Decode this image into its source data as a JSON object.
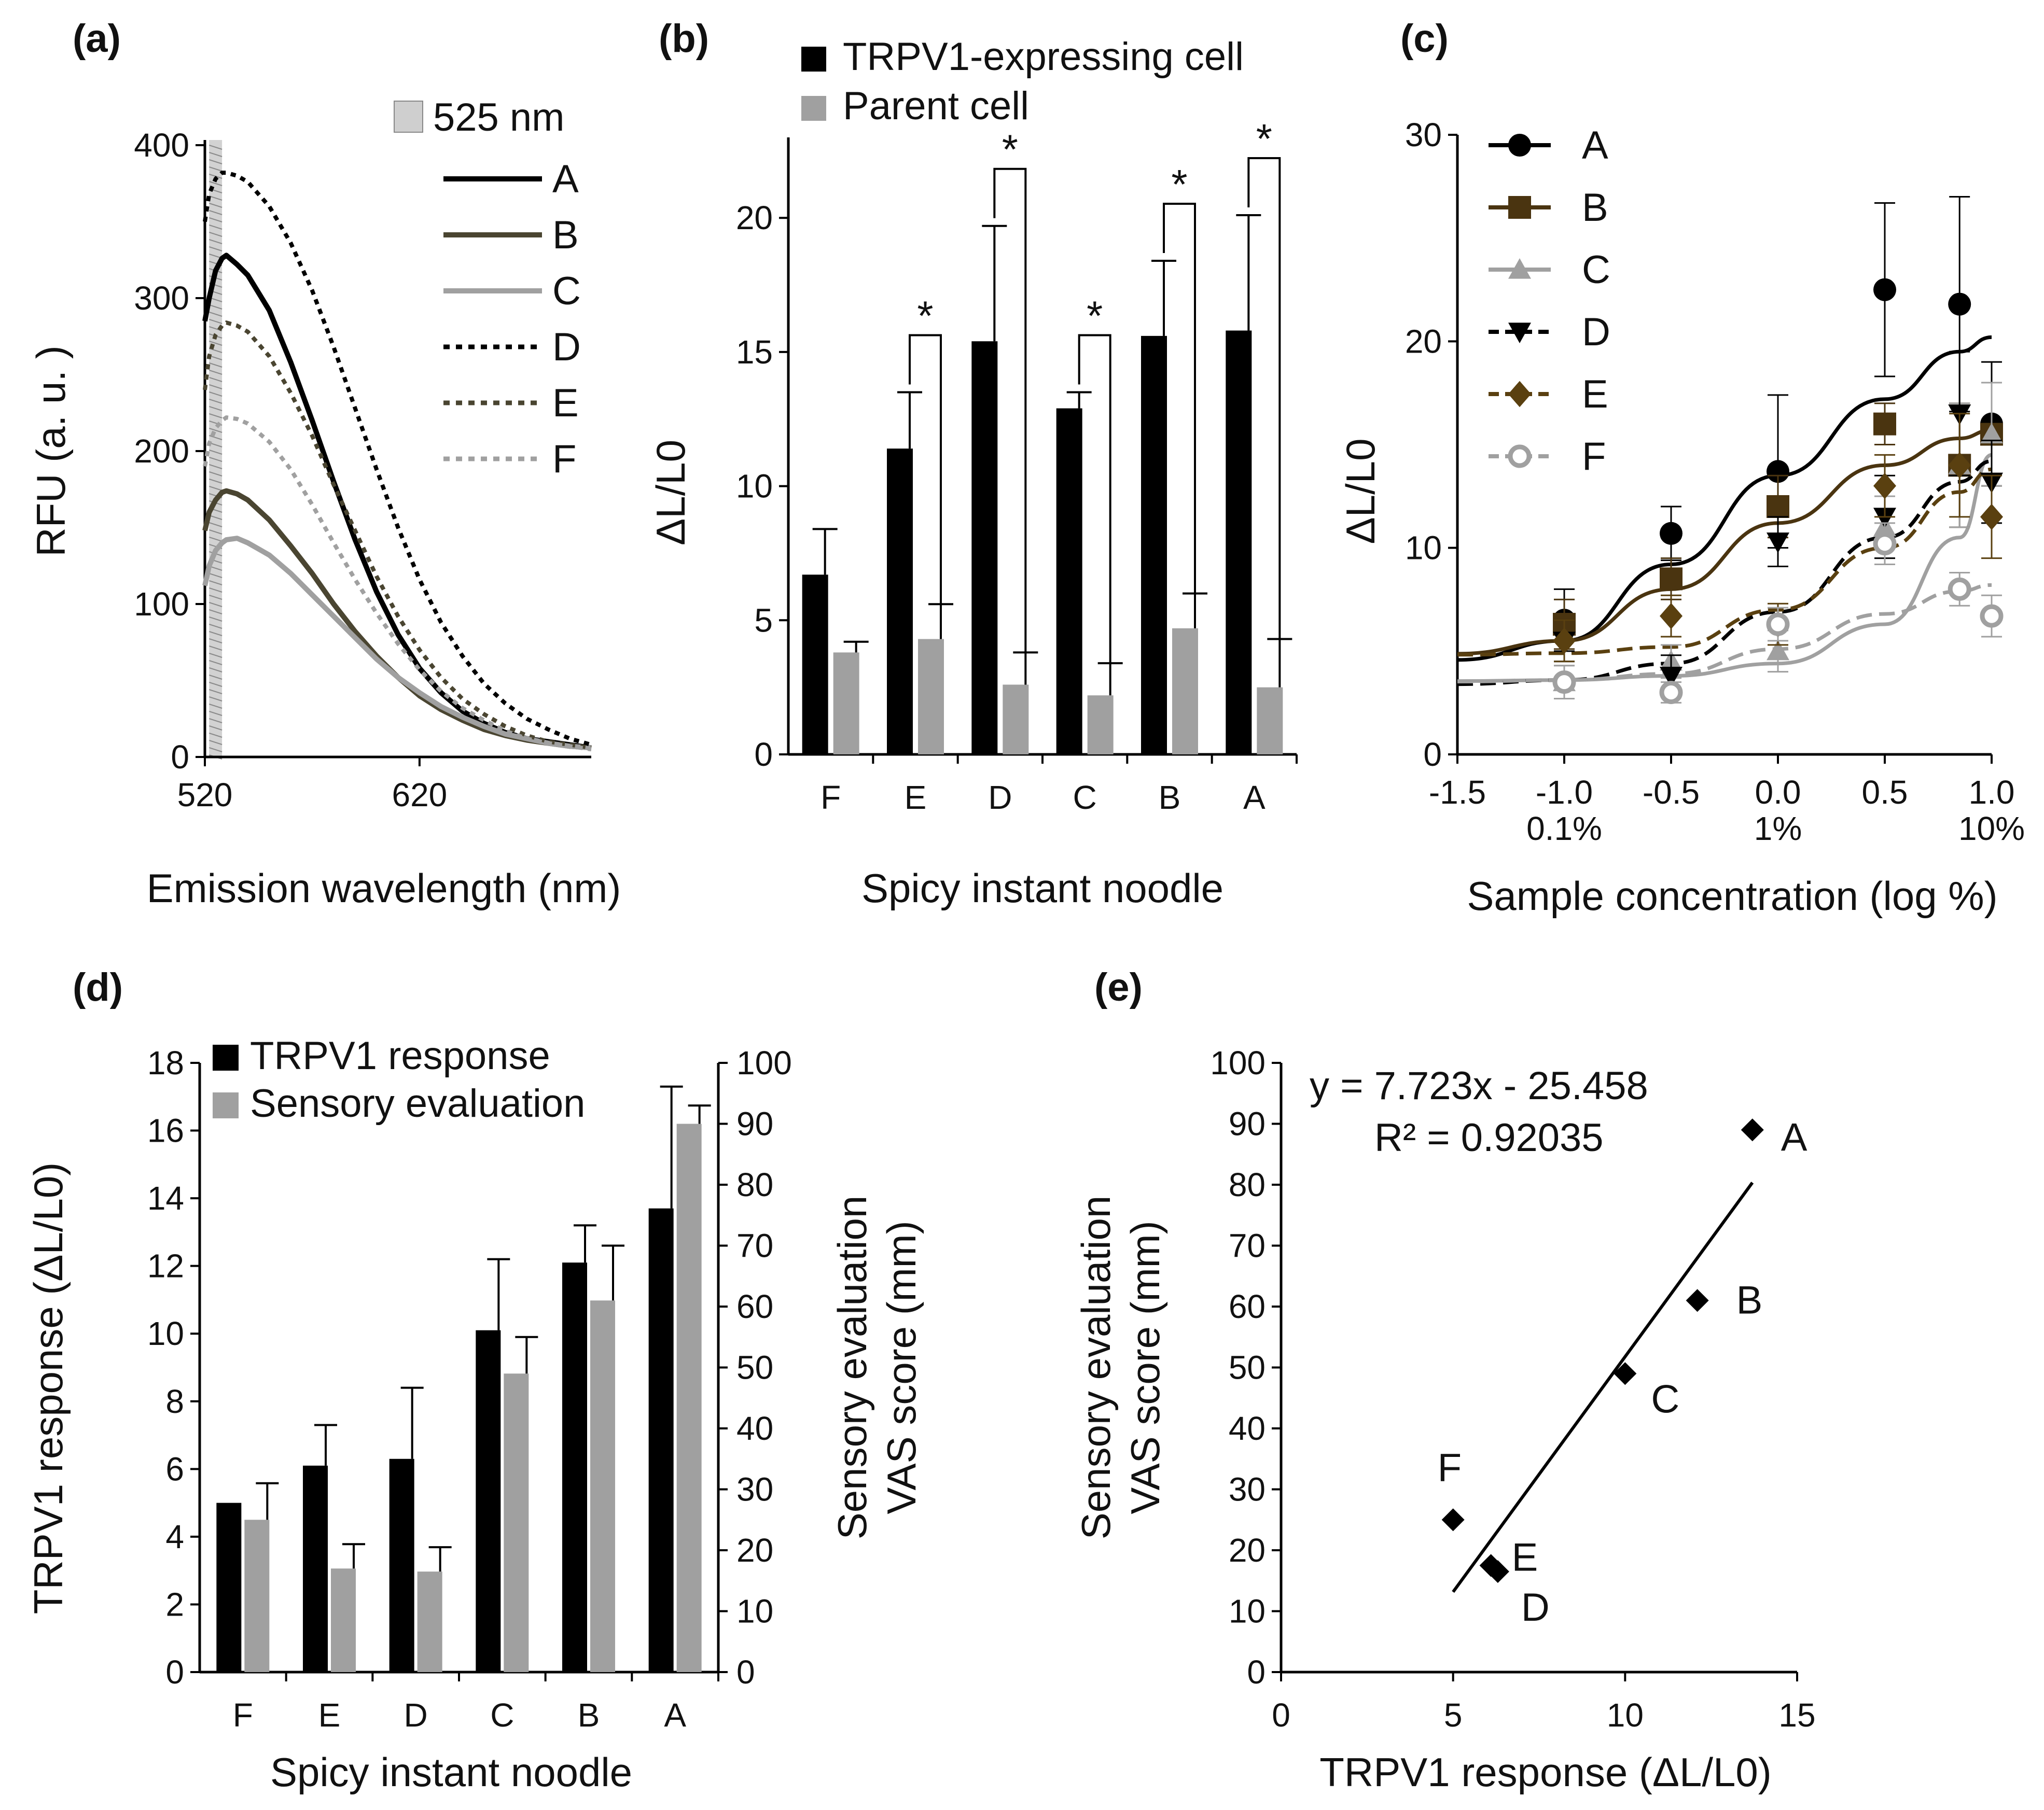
{
  "chart_data": [
    {
      "id": "a",
      "panel_label": "(a)",
      "type": "line",
      "title": "",
      "xlabel": "Emission wavelength (nm)",
      "ylabel": "RFU (a. u. )",
      "xlim": [
        520,
        700
      ],
      "ylim": [
        0,
        400
      ],
      "xticks": [
        520,
        620
      ],
      "yticks": [
        0,
        100,
        200,
        300,
        400
      ],
      "band": {
        "label": "525 nm",
        "x": [
          522,
          528
        ]
      },
      "series": [
        {
          "name": "A",
          "color": "#000000",
          "dash": "solid",
          "x": [
            520,
            522,
            525,
            528,
            530,
            535,
            540,
            550,
            560,
            570,
            580,
            590,
            600,
            610,
            620,
            630,
            640,
            650,
            660,
            670,
            680,
            690,
            700
          ],
          "y": [
            285,
            300,
            318,
            326,
            328,
            322,
            315,
            292,
            258,
            220,
            180,
            142,
            108,
            80,
            58,
            42,
            30,
            22,
            16,
            12,
            10,
            8,
            6
          ]
        },
        {
          "name": "B",
          "color": "#4a4531",
          "dash": "solid",
          "x": [
            520,
            522,
            525,
            528,
            530,
            535,
            540,
            550,
            560,
            570,
            580,
            590,
            600,
            610,
            620,
            630,
            640,
            650,
            660,
            670,
            680,
            690,
            700
          ],
          "y": [
            148,
            160,
            168,
            173,
            174,
            172,
            168,
            155,
            138,
            120,
            100,
            82,
            66,
            52,
            40,
            31,
            24,
            18,
            14,
            11,
            9,
            7,
            6
          ]
        },
        {
          "name": "C",
          "color": "#a0a0a0",
          "dash": "solid",
          "x": [
            520,
            522,
            525,
            528,
            530,
            535,
            540,
            550,
            560,
            570,
            580,
            590,
            600,
            610,
            620,
            630,
            640,
            650,
            660,
            670,
            680,
            690,
            700
          ],
          "y": [
            112,
            125,
            135,
            140,
            142,
            143,
            140,
            132,
            120,
            106,
            92,
            78,
            64,
            52,
            42,
            33,
            26,
            20,
            15,
            12,
            9,
            7,
            6
          ]
        },
        {
          "name": "D",
          "color": "#000000",
          "dash": "dot",
          "x": [
            520,
            522,
            525,
            528,
            530,
            535,
            540,
            550,
            560,
            570,
            580,
            590,
            600,
            610,
            620,
            630,
            640,
            650,
            660,
            670,
            680,
            690,
            700
          ],
          "y": [
            350,
            368,
            378,
            382,
            382,
            380,
            376,
            360,
            336,
            305,
            268,
            228,
            188,
            150,
            116,
            88,
            66,
            48,
            35,
            25,
            18,
            12,
            8
          ]
        },
        {
          "name": "E",
          "color": "#4a4531",
          "dash": "dot",
          "x": [
            520,
            522,
            525,
            528,
            530,
            535,
            540,
            550,
            560,
            570,
            580,
            590,
            600,
            610,
            620,
            630,
            640,
            650,
            660,
            670,
            680,
            690,
            700
          ],
          "y": [
            240,
            262,
            276,
            282,
            284,
            282,
            278,
            262,
            238,
            210,
            178,
            148,
            118,
            92,
            70,
            52,
            38,
            28,
            20,
            14,
            10,
            8,
            6
          ]
        },
        {
          "name": "F",
          "color": "#a0a0a0",
          "dash": "dot",
          "x": [
            520,
            522,
            525,
            528,
            530,
            535,
            540,
            550,
            560,
            570,
            580,
            590,
            600,
            610,
            620,
            630,
            640,
            650,
            660,
            670,
            680,
            690,
            700
          ],
          "y": [
            190,
            205,
            215,
            220,
            222,
            221,
            218,
            206,
            188,
            165,
            140,
            116,
            94,
            74,
            57,
            43,
            32,
            24,
            17,
            12,
            9,
            7,
            5
          ]
        }
      ]
    },
    {
      "id": "b",
      "panel_label": "(b)",
      "type": "bar",
      "title": "",
      "xlabel": "Spicy instant noodle",
      "ylabel": "ΔL/L0",
      "ylim": [
        0,
        23
      ],
      "yticks": [
        0,
        5,
        10,
        15,
        20
      ],
      "categories": [
        "F",
        "E",
        "D",
        "C",
        "B",
        "A"
      ],
      "series": [
        {
          "name": "TRPV1-expressing cell",
          "color": "#000000",
          "values": [
            6.7,
            11.4,
            15.4,
            12.9,
            15.6,
            15.8
          ],
          "errors": [
            1.7,
            2.1,
            4.3,
            0.6,
            2.8,
            4.3
          ]
        },
        {
          "name": "Parent cell",
          "color": "#a0a0a0",
          "values": [
            3.8,
            4.3,
            2.6,
            2.2,
            4.7,
            2.5
          ],
          "errors": [
            0.4,
            1.3,
            1.2,
            1.2,
            1.3,
            1.8
          ]
        }
      ],
      "significance": [
        {
          "category": "E",
          "label": "*"
        },
        {
          "category": "D",
          "label": "*"
        },
        {
          "category": "C",
          "label": "*"
        },
        {
          "category": "B",
          "label": "*"
        },
        {
          "category": "A",
          "label": "*"
        }
      ]
    },
    {
      "id": "c",
      "panel_label": "(c)",
      "type": "scatter",
      "title": "",
      "xlabel": "Sample concentration (log %)",
      "ylabel": "ΔL/L0",
      "xlim": [
        -1.5,
        1.0
      ],
      "ylim": [
        0,
        30
      ],
      "xticks": [
        -1.5,
        -1.0,
        -0.5,
        0.0,
        0.5,
        1.0
      ],
      "xtick_labels": [
        "-1.5",
        "-1.0",
        "-0.5",
        "0.0",
        "0.5",
        "1.0"
      ],
      "xsub_labels": [
        {
          "x": -1.0,
          "label": "0.1%"
        },
        {
          "x": 0.0,
          "label": "1%"
        },
        {
          "x": 1.0,
          "label": "10%"
        }
      ],
      "yticks": [
        0,
        10,
        20,
        30
      ],
      "series": [
        {
          "name": "A",
          "color": "#000000",
          "marker": "circle",
          "dash": "solid",
          "x": [
            -1.0,
            -0.5,
            0.0,
            0.5,
            0.85,
            1.0
          ],
          "y": [
            6.5,
            10.7,
            13.7,
            22.5,
            21.8,
            16.0
          ],
          "errors": [
            1.5,
            1.3,
            3.7,
            4.2,
            5.2,
            3.0
          ],
          "fit": [
            5.5,
            9.2,
            13.5,
            17.2,
            19.5,
            20.2
          ]
        },
        {
          "name": "B",
          "color": "#4a3410",
          "marker": "square",
          "dash": "solid",
          "x": [
            -1.0,
            -0.5,
            0.0,
            0.5,
            0.85,
            1.0
          ],
          "y": [
            6.3,
            8.5,
            12.0,
            16.0,
            14.0,
            15.5
          ],
          "errors": [
            1.2,
            1.0,
            1.5,
            1.0,
            3.0,
            2.5
          ],
          "fit": [
            5.5,
            8.0,
            11.2,
            14.0,
            15.3,
            15.7
          ]
        },
        {
          "name": "C",
          "color": "#a0a0a0",
          "marker": "triangle",
          "dash": "solid",
          "x": [
            -1.0,
            -0.5,
            0.0,
            0.5,
            0.85,
            1.0
          ],
          "y": [
            3.5,
            4.5,
            5.0,
            11.0,
            14.0,
            15.5
          ],
          "errors": [
            0.8,
            0.8,
            1.0,
            1.5,
            3.0,
            2.5
          ],
          "fit": [
            3.6,
            3.8,
            4.4,
            6.3,
            10.5,
            14.5
          ]
        },
        {
          "name": "D",
          "color": "#000000",
          "marker": "triangle-down",
          "dash": "dash",
          "x": [
            -1.0,
            -0.5,
            0.0,
            0.5,
            0.85,
            1.0
          ],
          "y": [
            5.5,
            3.8,
            10.3,
            11.5,
            16.5,
            13.2
          ],
          "errors": [
            1.0,
            1.0,
            1.2,
            2.0,
            3.0,
            2.0
          ],
          "fit": [
            3.6,
            4.4,
            6.9,
            10.5,
            13.2,
            14.2
          ]
        },
        {
          "name": "E",
          "color": "#5a4010",
          "marker": "diamond",
          "dash": "dash",
          "x": [
            -1.0,
            -0.5,
            0.0,
            0.5,
            0.85,
            1.0
          ],
          "y": [
            5.5,
            6.7,
            6.3,
            13.0,
            14.0,
            11.5
          ],
          "errors": [
            1.0,
            1.0,
            1.0,
            1.5,
            2.5,
            2.0
          ],
          "fit": [
            4.9,
            5.2,
            7.0,
            10.0,
            12.7,
            13.8
          ]
        },
        {
          "name": "F",
          "color": "#a0a0a0",
          "marker": "circle-open",
          "dash": "dash",
          "x": [
            -1.0,
            -0.5,
            0.0,
            0.5,
            0.85,
            1.0
          ],
          "y": [
            3.5,
            3.0,
            6.3,
            10.2,
            8.0,
            6.7
          ],
          "errors": [
            0.8,
            0.5,
            0.8,
            1.0,
            0.8,
            1.0
          ],
          "fit": [
            3.6,
            3.9,
            5.1,
            6.8,
            7.9,
            8.2
          ]
        }
      ]
    },
    {
      "id": "d",
      "panel_label": "(d)",
      "type": "bar",
      "title": "",
      "xlabel": "Spicy instant noodle",
      "ylabel": "TRPV1 response (ΔL/L0)",
      "y2label_lines": [
        "Sensory evaluation",
        "VAS score (mm)"
      ],
      "ylim": [
        0,
        18
      ],
      "yticks": [
        0,
        2,
        4,
        6,
        8,
        10,
        12,
        14,
        16,
        18
      ],
      "y2lim": [
        0,
        100
      ],
      "y2ticks": [
        0,
        10,
        20,
        30,
        40,
        50,
        60,
        70,
        80,
        90,
        100
      ],
      "categories": [
        "F",
        "E",
        "D",
        "C",
        "B",
        "A"
      ],
      "series": [
        {
          "name": "TRPV1 response",
          "color": "#000000",
          "axis": "left",
          "values": [
            5.0,
            6.1,
            6.3,
            10.1,
            12.1,
            13.7
          ],
          "errors": [
            0.0,
            1.2,
            2.1,
            2.1,
            1.1,
            3.6
          ]
        },
        {
          "name": "Sensory evaluation",
          "color": "#a0a0a0",
          "axis": "right",
          "values": [
            25,
            17,
            16.5,
            49,
            61,
            90
          ],
          "errors": [
            6,
            4,
            4,
            6,
            9,
            3
          ]
        }
      ]
    },
    {
      "id": "e",
      "panel_label": "(e)",
      "type": "scatter",
      "title": "",
      "xlabel": "TRPV1 response (ΔL/L0)",
      "ylabel_lines": [
        "Sensory evaluation",
        "VAS score (mm)"
      ],
      "xlim": [
        0,
        15
      ],
      "ylim": [
        0,
        100
      ],
      "xticks": [
        0,
        5,
        10,
        15
      ],
      "yticks": [
        0,
        10,
        20,
        30,
        40,
        50,
        60,
        70,
        80,
        90,
        100
      ],
      "equation": "y = 7.723x - 25.458",
      "r2": "R² = 0.92035",
      "trendline": {
        "slope": 7.723,
        "intercept": -25.458,
        "x": [
          5.0,
          13.7
        ]
      },
      "points": [
        {
          "label": "A",
          "x": 13.7,
          "y": 89
        },
        {
          "label": "B",
          "x": 12.1,
          "y": 61
        },
        {
          "label": "C",
          "x": 10.0,
          "y": 49
        },
        {
          "label": "D",
          "x": 6.3,
          "y": 16.5
        },
        {
          "label": "E",
          "x": 6.1,
          "y": 17.5
        },
        {
          "label": "F",
          "x": 5.0,
          "y": 25
        }
      ]
    }
  ]
}
